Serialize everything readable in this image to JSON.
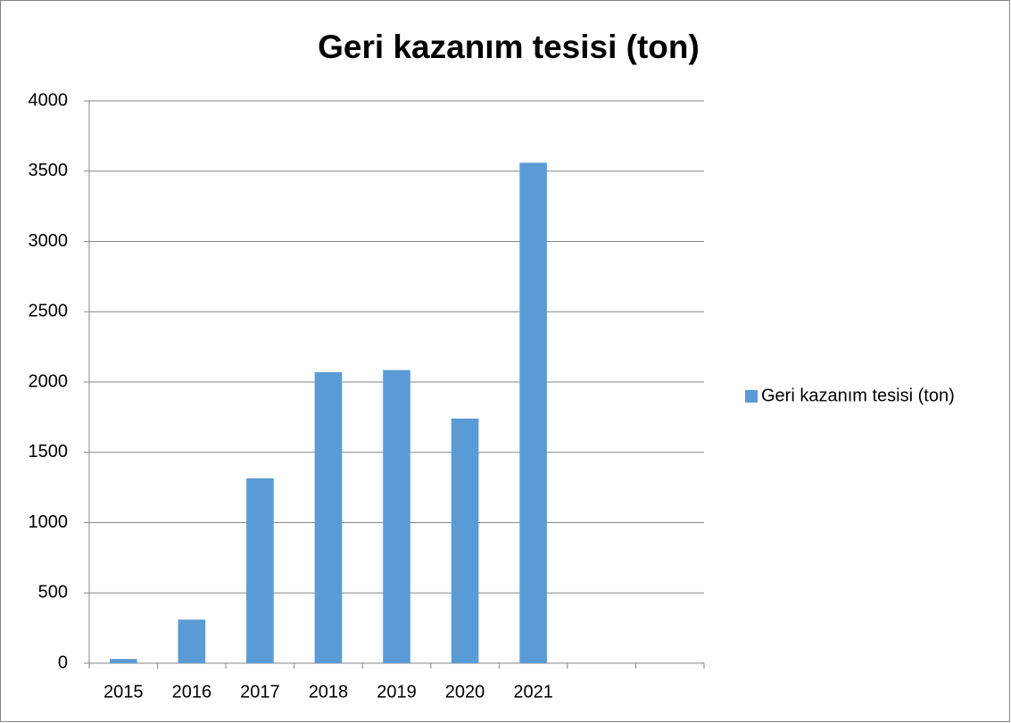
{
  "chart_data": {
    "type": "bar",
    "title": "Geri kazanım tesisi (ton)",
    "categories": [
      "2015",
      "2016",
      "2017",
      "2018",
      "2019",
      "2020",
      "2021",
      null,
      null
    ],
    "series": [
      {
        "name": "Geri kazanım tesisi (ton)",
        "color": "#5b9bd5",
        "values": [
          30,
          310,
          1315,
          2070,
          2085,
          1740,
          3560,
          null,
          null
        ]
      }
    ],
    "ylim": [
      0,
      4000
    ],
    "yticks": [
      0,
      500,
      1000,
      1500,
      2000,
      2500,
      3000,
      3500,
      4000
    ],
    "grid": true,
    "legend": "right"
  }
}
